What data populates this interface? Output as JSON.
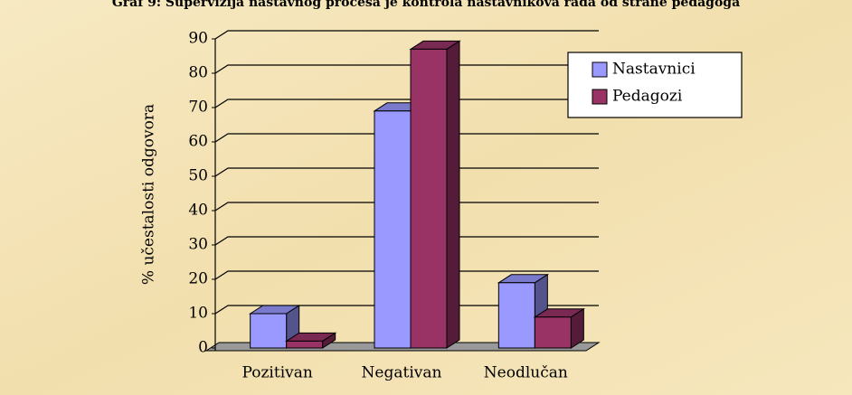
{
  "chart_data": {
    "type": "bar3d",
    "title": "Graf 9: Supervizija nastavnog procesa je kontrola nastavnikova rada od strane pedagoga",
    "y_label": "% učestalosti odgovora",
    "categories": [
      "Pozitivan",
      "Negativan",
      "Neodlučan"
    ],
    "series": [
      {
        "name": "Nastavnici",
        "color": "#9999ff",
        "values": [
          10,
          69,
          19
        ]
      },
      {
        "name": "Pedagozi",
        "color": "#993366",
        "values": [
          2,
          87,
          9
        ]
      }
    ],
    "ylim": [
      0,
      90
    ],
    "yticks": [
      0,
      10,
      20,
      30,
      40,
      50,
      60,
      70,
      80,
      90
    ],
    "grid": true,
    "legend": "upper right"
  }
}
